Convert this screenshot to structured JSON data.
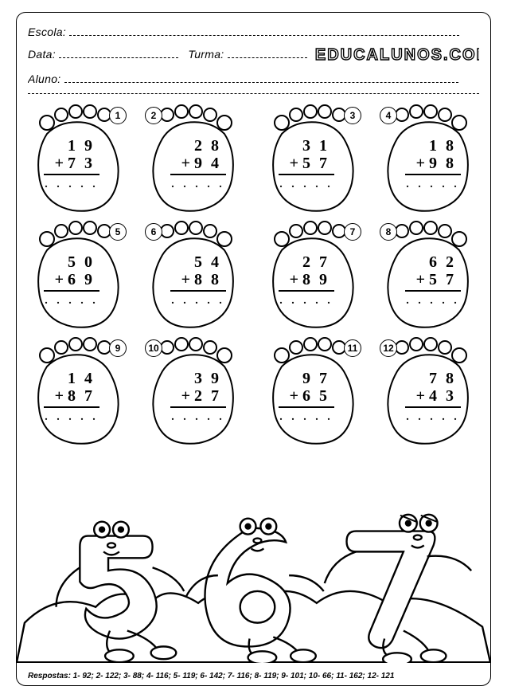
{
  "header": {
    "escola_label": "Escola:",
    "data_label": "Data:",
    "turma_label": "Turma:",
    "aluno_label": "Aluno:",
    "brand": "EDUCALUNOS.COM"
  },
  "problems": [
    {
      "n": "1",
      "top": "1 9",
      "bot": "7 3",
      "side": "left"
    },
    {
      "n": "2",
      "top": "2 8",
      "bot": "9 4",
      "side": "right"
    },
    {
      "n": "3",
      "top": "3 1",
      "bot": "5 7",
      "side": "left"
    },
    {
      "n": "4",
      "top": "1 8",
      "bot": "9 8",
      "side": "right"
    },
    {
      "n": "5",
      "top": "5 0",
      "bot": "6 9",
      "side": "left"
    },
    {
      "n": "6",
      "top": "5 4",
      "bot": "8 8",
      "side": "right"
    },
    {
      "n": "7",
      "top": "2 7",
      "bot": "8 9",
      "side": "left"
    },
    {
      "n": "8",
      "top": "6 2",
      "bot": "5 7",
      "side": "right"
    },
    {
      "n": "9",
      "top": "1 4",
      "bot": "8 7",
      "side": "left"
    },
    {
      "n": "10",
      "top": "3 9",
      "bot": "2 7",
      "side": "right"
    },
    {
      "n": "11",
      "top": "9 7",
      "bot": "6 5",
      "side": "left"
    },
    {
      "n": "12",
      "top": "7 8",
      "bot": "4 3",
      "side": "right"
    }
  ],
  "cartoon_digits": [
    "5",
    "6",
    "7"
  ],
  "answers_line": "Respostas: 1- 92; 2- 122; 3- 88; 4- 116; 5- 119; 6- 142; 7- 116; 8- 119; 9- 101; 10- 66; 11- 162; 12- 121",
  "style": {
    "stroke": "#000000",
    "fill": "#ffffff",
    "dots": ". . . . ."
  }
}
